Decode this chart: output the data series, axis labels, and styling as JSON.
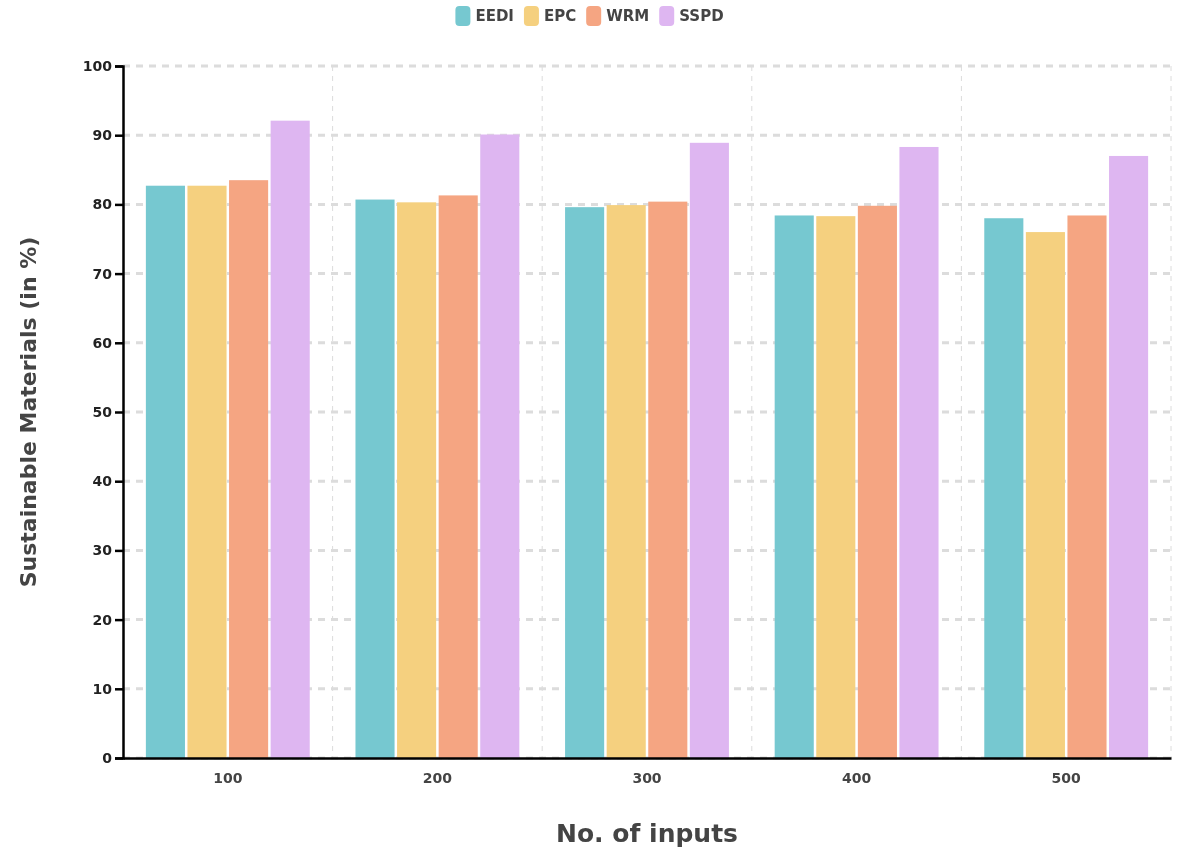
{
  "chart_data": {
    "type": "bar",
    "xlabel": "No. of inputs",
    "ylabel": "Sustainable Materials (in %)",
    "categories": [
      "100",
      "200",
      "300",
      "400",
      "500"
    ],
    "series": [
      {
        "name": "EEDI",
        "color": "#76c8d0",
        "values": [
          82.7,
          80.7,
          79.6,
          78.4,
          78.0
        ]
      },
      {
        "name": "EPC",
        "color": "#f5d07f",
        "values": [
          82.7,
          80.3,
          79.9,
          78.3,
          76.0
        ]
      },
      {
        "name": "WRM",
        "color": "#f5a582",
        "values": [
          83.5,
          81.3,
          80.4,
          79.8,
          78.4
        ]
      },
      {
        "name": "SSPD",
        "color": "#deb6f1",
        "values": [
          92.1,
          90.1,
          88.9,
          88.3,
          87.0
        ]
      }
    ],
    "ylim": [
      0,
      100
    ],
    "yticks": [
      0,
      10,
      20,
      30,
      40,
      50,
      60,
      70,
      80,
      90,
      100
    ],
    "grid": true,
    "legend": "top"
  }
}
